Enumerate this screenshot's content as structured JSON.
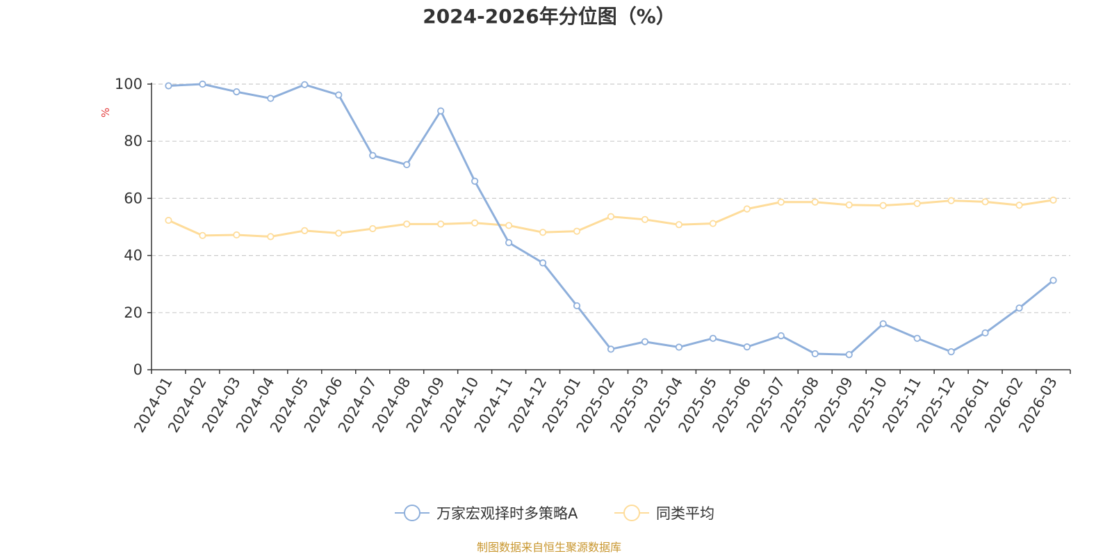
{
  "chart_data": {
    "type": "line",
    "title": "2024-2026年分位图（%）",
    "ylabel": "%",
    "xlabel": "",
    "ylim": [
      0,
      100
    ],
    "yticks": [
      0,
      20,
      40,
      60,
      80,
      100
    ],
    "grid": true,
    "legend_position": "bottom-center",
    "categories": [
      "2024-01",
      "2024-02",
      "2024-03",
      "2024-04",
      "2024-05",
      "2024-06",
      "2024-07",
      "2024-08",
      "2024-09",
      "2024-10",
      "2024-11",
      "2024-12",
      "2025-01",
      "2025-02",
      "2025-03",
      "2025-04",
      "2025-05",
      "2025-06",
      "2025-07",
      "2025-08",
      "2025-09",
      "2025-10",
      "2025-11",
      "2025-12",
      "2026-01",
      "2026-02",
      "2026-03"
    ],
    "series": [
      {
        "name": "万家宏观择时多策略A",
        "color": "#8eafdb",
        "values": [
          99.4,
          100,
          97.3,
          95.0,
          99.8,
          96.2,
          75.0,
          71.8,
          90.6,
          66.0,
          44.5,
          37.4,
          22.4,
          7.2,
          9.8,
          7.9,
          11.0,
          8.0,
          11.9,
          5.6,
          5.3,
          16.1,
          11.0,
          6.3,
          12.9,
          21.6,
          31.3
        ]
      },
      {
        "name": "同类平均",
        "color": "#fedc9a",
        "values": [
          52.3,
          47.0,
          47.2,
          46.6,
          48.7,
          47.8,
          49.4,
          51.0,
          51.0,
          51.4,
          50.5,
          48.1,
          48.5,
          53.6,
          52.6,
          50.8,
          51.2,
          56.3,
          58.7,
          58.7,
          57.7,
          57.5,
          58.2,
          59.2,
          58.8,
          57.6,
          59.4
        ]
      }
    ]
  },
  "source": {
    "text": "制图数据来自恒生聚源数据库",
    "color": "#c8962e"
  },
  "colors": {
    "axis": "#333333",
    "grid": "#cccccc",
    "unit_label": "#e33b3b"
  }
}
